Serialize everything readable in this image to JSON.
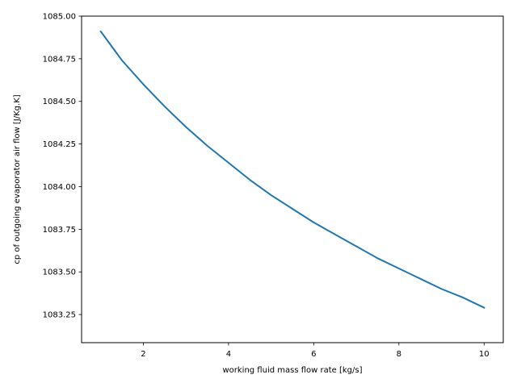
{
  "chart_data": {
    "type": "line",
    "title": "",
    "xlabel": "working fluid mass flow rate [kg/s]",
    "ylabel": "cp of outgoing evaporator air flow [J/Kg.K]",
    "xlim": [
      0.55,
      10.45
    ],
    "ylim": [
      1083.085,
      1085.0
    ],
    "grid": false,
    "legend": "none",
    "x_ticks": [
      2,
      4,
      6,
      8,
      10
    ],
    "x_tick_labels": [
      "2",
      "4",
      "6",
      "8",
      "10"
    ],
    "y_ticks": [
      1083.25,
      1083.5,
      1083.75,
      1084.0,
      1084.25,
      1084.5,
      1084.75,
      1085.0
    ],
    "y_tick_labels": [
      "1083.25",
      "1083.50",
      "1083.75",
      "1084.00",
      "1084.25",
      "1084.50",
      "1084.75",
      "1085.00"
    ],
    "series": [
      {
        "color": "#1f77b4",
        "x": [
          1.0,
          1.5,
          2.0,
          2.5,
          3.0,
          3.5,
          4.0,
          4.5,
          5.0,
          5.5,
          6.0,
          6.5,
          7.0,
          7.5,
          8.0,
          8.5,
          9.0,
          9.5,
          10.0
        ],
        "y": [
          1084.91,
          1084.74,
          1084.6,
          1084.47,
          1084.35,
          1084.24,
          1084.14,
          1084.04,
          1083.95,
          1083.87,
          1083.79,
          1083.72,
          1083.65,
          1083.58,
          1083.52,
          1083.46,
          1083.4,
          1083.35,
          1083.29
        ]
      }
    ]
  }
}
